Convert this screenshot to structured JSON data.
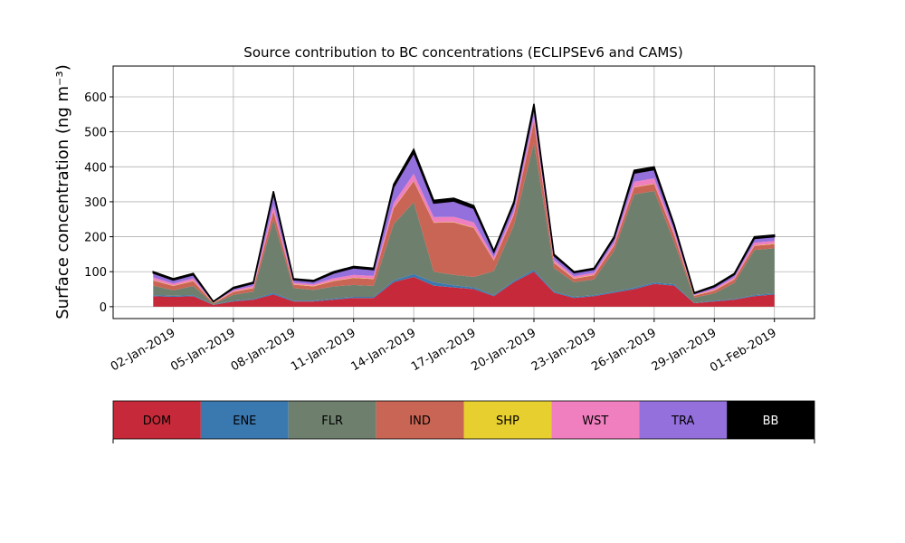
{
  "chart_data": {
    "type": "stacked_area",
    "title": "Source contribution to BC concentrations (ECLIPSEv6 and CAMS)",
    "y_label": "Surface concentration (ng m⁻³)",
    "x": [
      "2019-01-01",
      "2019-01-02",
      "2019-01-03",
      "2019-01-04",
      "2019-01-05",
      "2019-01-06",
      "2019-01-07",
      "2019-01-08",
      "2019-01-09",
      "2019-01-10",
      "2019-01-11",
      "2019-01-12",
      "2019-01-13",
      "2019-01-14",
      "2019-01-15",
      "2019-01-16",
      "2019-01-17",
      "2019-01-18",
      "2019-01-19",
      "2019-01-20",
      "2019-01-21",
      "2019-01-22",
      "2019-01-23",
      "2019-01-24",
      "2019-01-25",
      "2019-01-26",
      "2019-01-27",
      "2019-01-28",
      "2019-01-29",
      "2019-01-30",
      "2019-01-31",
      "2019-02-01"
    ],
    "series": [
      {
        "name": "DOM",
        "color": "#c62a3a",
        "values": [
          30,
          28,
          30,
          5,
          15,
          20,
          35,
          15,
          15,
          20,
          25,
          25,
          70,
          85,
          60,
          55,
          50,
          30,
          70,
          100,
          40,
          25,
          30,
          40,
          50,
          65,
          60,
          10,
          15,
          20,
          30,
          35
        ]
      },
      {
        "name": "ENE",
        "color": "#3a78b0",
        "values": [
          3,
          3,
          3,
          1,
          2,
          2,
          4,
          2,
          2,
          3,
          3,
          3,
          5,
          8,
          10,
          6,
          5,
          3,
          4,
          5,
          3,
          3,
          3,
          3,
          4,
          4,
          4,
          1,
          2,
          2,
          3,
          3
        ]
      },
      {
        "name": "FLR",
        "color": "#6e7f6e",
        "values": [
          27,
          16,
          26,
          2,
          17,
          21,
          209,
          36,
          31,
          35,
          34,
          31,
          161,
          206,
          30,
          30,
          30,
          69,
          159,
          364,
          67,
          42,
          45,
          117,
          267,
          262,
          120,
          15,
          21,
          46,
          129,
          129
        ]
      },
      {
        "name": "IND",
        "color": "#c96554",
        "values": [
          15,
          12,
          14,
          2,
          8,
          10,
          25,
          10,
          10,
          15,
          20,
          20,
          45,
          60,
          140,
          150,
          140,
          30,
          30,
          60,
          15,
          10,
          12,
          15,
          20,
          20,
          20,
          5,
          8,
          10,
          12,
          12
        ]
      },
      {
        "name": "SHP",
        "color": "#e8cf30",
        "values": [
          1,
          1,
          1,
          1,
          1,
          1,
          1,
          1,
          1,
          1,
          1,
          1,
          1,
          1,
          1,
          1,
          1,
          1,
          1,
          1,
          1,
          1,
          1,
          1,
          1,
          1,
          1,
          1,
          1,
          1,
          1,
          1
        ]
      },
      {
        "name": "WST",
        "color": "#f07fbf",
        "values": [
          8,
          6,
          7,
          1,
          4,
          5,
          15,
          5,
          5,
          7,
          8,
          8,
          15,
          20,
          15,
          15,
          15,
          8,
          10,
          15,
          8,
          6,
          6,
          8,
          15,
          15,
          10,
          2,
          4,
          5,
          8,
          8
        ]
      },
      {
        "name": "TRA",
        "color": "#9370db",
        "values": [
          12,
          10,
          10,
          2,
          5,
          8,
          35,
          8,
          8,
          15,
          20,
          18,
          45,
          60,
          40,
          45,
          40,
          15,
          20,
          25,
          12,
          10,
          10,
          12,
          25,
          25,
          15,
          4,
          6,
          8,
          12,
          12
        ]
      },
      {
        "name": "BB",
        "color": "#000000",
        "values": [
          4,
          4,
          4,
          1,
          3,
          3,
          6,
          3,
          3,
          4,
          4,
          4,
          8,
          10,
          8,
          8,
          8,
          4,
          6,
          10,
          4,
          3,
          3,
          4,
          8,
          8,
          5,
          2,
          3,
          3,
          5,
          5
        ]
      }
    ],
    "xlim": [
      "2018-12-30",
      "2019-02-03"
    ],
    "xticks": [
      {
        "value": "2019-01-02",
        "label": "02-Jan-2019"
      },
      {
        "value": "2019-01-05",
        "label": "05-Jan-2019"
      },
      {
        "value": "2019-01-08",
        "label": "08-Jan-2019"
      },
      {
        "value": "2019-01-11",
        "label": "11-Jan-2019"
      },
      {
        "value": "2019-01-14",
        "label": "14-Jan-2019"
      },
      {
        "value": "2019-01-17",
        "label": "17-Jan-2019"
      },
      {
        "value": "2019-01-20",
        "label": "20-Jan-2019"
      },
      {
        "value": "2019-01-23",
        "label": "23-Jan-2019"
      },
      {
        "value": "2019-01-26",
        "label": "26-Jan-2019"
      },
      {
        "value": "2019-01-29",
        "label": "29-Jan-2019"
      },
      {
        "value": "2019-02-01",
        "label": "01-Feb-2019"
      }
    ],
    "ylim": [
      -34,
      688
    ],
    "yticks": [
      0,
      100,
      200,
      300,
      400,
      500,
      600
    ],
    "grid": true
  }
}
